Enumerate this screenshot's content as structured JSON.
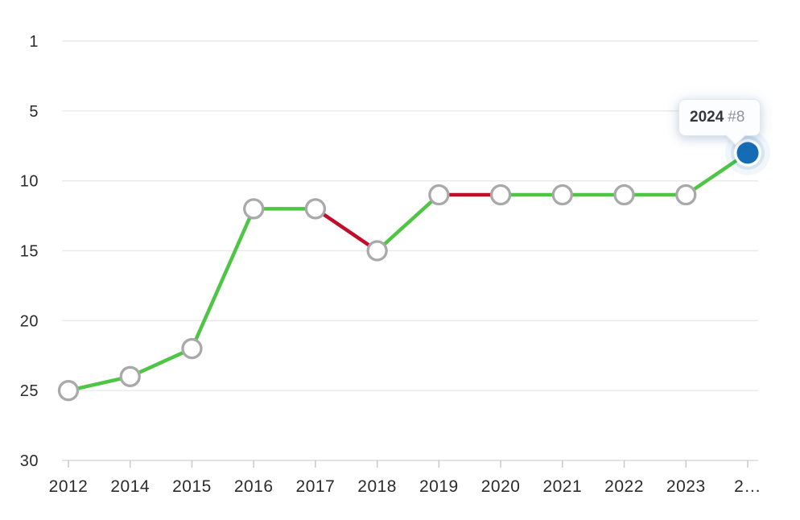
{
  "tooltip": {
    "year": "2024",
    "rank_label": "#8"
  },
  "chart_data": {
    "type": "line",
    "x": [
      "2012",
      "2014",
      "2015",
      "2016",
      "2017",
      "2018",
      "2019",
      "2020",
      "2021",
      "2022",
      "2023",
      "2024"
    ],
    "x_tick_labels": [
      "2012",
      "2014",
      "2015",
      "2016",
      "2017",
      "2018",
      "2019",
      "2020",
      "2021",
      "2022",
      "2023",
      "2…"
    ],
    "series": [
      {
        "name": "rank",
        "values": [
          25,
          24,
          22,
          12,
          12,
          15,
          11,
          11,
          11,
          11,
          11,
          8
        ]
      }
    ],
    "segment_colors": [
      "improve",
      "improve",
      "improve",
      "improve",
      "decline",
      "improve",
      "decline",
      "improve",
      "improve",
      "improve",
      "improve"
    ],
    "y_ticks": [
      1,
      5,
      10,
      15,
      20,
      25,
      30
    ],
    "y_axis_inverted": true,
    "ylim": [
      1,
      30
    ],
    "grid": "horizontal",
    "legend": "none",
    "highlight_point": {
      "x": "2024",
      "value": 8,
      "label": "#8"
    },
    "colors": {
      "improve": "#4fc546",
      "decline": "#c20e29",
      "marker_fill": "#ffffff",
      "marker_stroke": "#a9a9a9",
      "current_point": "#146cb4",
      "gridline": "#e9e9e9",
      "axis_line": "#dcdcdc",
      "tick": "#c6c6c6",
      "label": "#2b2b2e"
    }
  }
}
